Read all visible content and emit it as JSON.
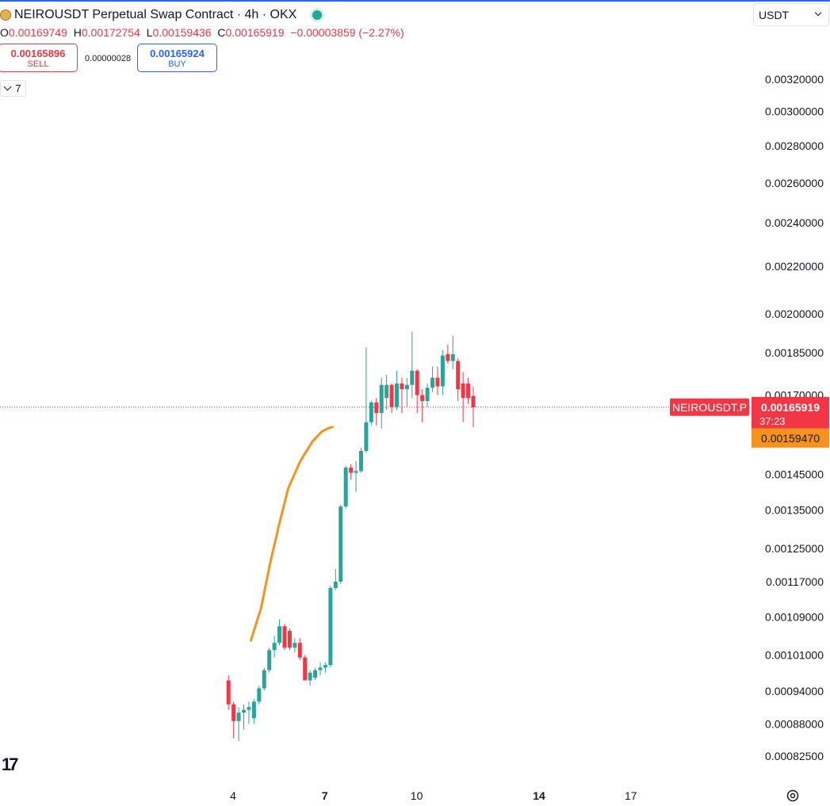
{
  "header": {
    "symbol_title": "NEIROUSDT Perpetual Swap Contract · 4h · OKX",
    "ohlc": {
      "o_label": "O",
      "o": "0.00169749",
      "h_label": "H",
      "h": "0.00172754",
      "l_label": "L",
      "l": "0.00159436",
      "c_label": "C",
      "c": "0.00165919",
      "change": "−0.00003859 (−2.27%)"
    },
    "sell_price": "0.00165896",
    "sell_label": "SELL",
    "spread": "0.00000028",
    "buy_price": "0.00165924",
    "buy_label": "BUY",
    "indicator_count": "7",
    "currency": "USDT",
    "logo": "17"
  },
  "colors": {
    "up": "#26a69a",
    "down": "#f23645",
    "ma": "#f7931a",
    "accent": "#2962ff"
  },
  "icons": [
    "coin-icon",
    "status-dot-icon",
    "chevron-down-icon",
    "settings-icon",
    "tradingview-logo"
  ],
  "chart_data": {
    "type": "candlestick",
    "y_axis_ticks": [
      "0.00320000",
      "0.00300000",
      "0.00280000",
      "0.00260000",
      "0.00240000",
      "0.00220000",
      "0.00200000",
      "0.00185000",
      "0.00170000",
      "0.00145000",
      "0.00135000",
      "0.00125000",
      "0.00117000",
      "0.00109000",
      "0.00101000",
      "0.00094000",
      "0.00088000",
      "0.00082500"
    ],
    "y_scale": "log",
    "x_axis_ticks": [
      {
        "label": "4",
        "bold": false
      },
      {
        "label": "7",
        "bold": true
      },
      {
        "label": "10",
        "bold": false
      },
      {
        "label": "14",
        "bold": true
      },
      {
        "label": "17",
        "bold": false
      }
    ],
    "first_candle_day": 3.85,
    "candle_period_days": 0.16667,
    "candles": [
      [
        0.00096,
        0.00097,
        0.000905,
        0.000915
      ],
      [
        0.000915,
        0.00092,
        0.000855,
        0.000885
      ],
      [
        0.000885,
        0.00091,
        0.00085,
        0.0009
      ],
      [
        0.0009,
        0.000915,
        0.00087,
        0.000905
      ],
      [
        0.000905,
        0.00092,
        0.00088,
        0.00091
      ],
      [
        0.00089,
        0.000925,
        0.00088,
        0.00092
      ],
      [
        0.00092,
        0.00095,
        0.000915,
        0.000945
      ],
      [
        0.000945,
        0.000985,
        0.00094,
        0.00098
      ],
      [
        0.00098,
        0.001025,
        0.000975,
        0.00102
      ],
      [
        0.00102,
        0.00105,
        0.001005,
        0.001035
      ],
      [
        0.001035,
        0.001085,
        0.00103,
        0.00107
      ],
      [
        0.00107,
        0.001075,
        0.00102,
        0.001025
      ],
      [
        0.00106,
        0.001065,
        0.00102,
        0.001025
      ],
      [
        0.001025,
        0.001045,
        0.001015,
        0.001035
      ],
      [
        0.001035,
        0.001045,
        0.001,
        0.001005
      ],
      [
        0.001005,
        0.00101,
        0.00096,
        0.00096
      ],
      [
        0.00096,
        0.00098,
        0.00095,
        0.000975
      ],
      [
        0.000965,
        0.000985,
        0.00096,
        0.00098
      ],
      [
        0.00098,
        0.000995,
        0.00097,
        0.000985
      ],
      [
        0.000985,
        0.000995,
        0.000975,
        0.00099
      ],
      [
        0.00099,
        0.00116,
        0.000985,
        0.001155
      ],
      [
        0.001155,
        0.0012,
        0.00115,
        0.00117
      ],
      [
        0.00117,
        0.001365,
        0.001165,
        0.00136
      ],
      [
        0.00136,
        0.001475,
        0.001355,
        0.00147
      ],
      [
        0.00147,
        0.00148,
        0.001435,
        0.001455
      ],
      [
        0.001455,
        0.00149,
        0.0014,
        0.00146
      ],
      [
        0.00146,
        0.00153,
        0.001455,
        0.00152
      ],
      [
        0.00152,
        0.00187,
        0.001515,
        0.00161
      ],
      [
        0.00161,
        0.00168,
        0.0016,
        0.001675
      ],
      [
        0.001675,
        0.00169,
        0.0016,
        0.00164
      ],
      [
        0.00164,
        0.00176,
        0.00159,
        0.001735
      ],
      [
        0.00169,
        0.00177,
        0.00165,
        0.001735
      ],
      [
        0.001735,
        0.00174,
        0.00164,
        0.00166
      ],
      [
        0.00166,
        0.001785,
        0.00165,
        0.00174
      ],
      [
        0.00174,
        0.00176,
        0.00164,
        0.00172
      ],
      [
        0.00172,
        0.00176,
        0.00166,
        0.001735
      ],
      [
        0.001735,
        0.00193,
        0.00169,
        0.001785
      ],
      [
        0.001785,
        0.00179,
        0.00164,
        0.0017
      ],
      [
        0.0017,
        0.00172,
        0.00161,
        0.00168
      ],
      [
        0.00168,
        0.00174,
        0.00166,
        0.001725
      ],
      [
        0.001725,
        0.0018,
        0.00171,
        0.00176
      ],
      [
        0.00176,
        0.0018,
        0.0017,
        0.00173
      ],
      [
        0.00173,
        0.00186,
        0.0017,
        0.00184
      ],
      [
        0.001845,
        0.00188,
        0.00181,
        0.00182
      ],
      [
        0.00182,
        0.001915,
        0.00179,
        0.001845
      ],
      [
        0.00182,
        0.00183,
        0.00168,
        0.00172
      ],
      [
        0.00174,
        0.00178,
        0.00161,
        0.00169
      ],
      [
        0.00174,
        0.00176,
        0.00167,
        0.00169
      ],
      [
        0.001697,
        0.001728,
        0.001594,
        0.001659
      ]
    ],
    "moving_average": [
      {
        "day": 4.5833,
        "price": 0.00104
      },
      {
        "day": 4.9167,
        "price": 0.00111
      },
      {
        "day": 5.2,
        "price": 0.00121
      },
      {
        "day": 5.5,
        "price": 0.00131
      },
      {
        "day": 5.8,
        "price": 0.00141
      },
      {
        "day": 6.2,
        "price": 0.00149
      },
      {
        "day": 6.6,
        "price": 0.00155
      },
      {
        "day": 6.9,
        "price": 0.00158
      },
      {
        "day": 7.1,
        "price": 0.00159
      },
      {
        "day": 7.25,
        "price": 0.001595
      }
    ],
    "last_price_line": 0.00165919,
    "price_label": {
      "symbol": "NEIROUSDT.P",
      "price": "0.00165919",
      "countdown": "37:23"
    },
    "ma_label": {
      "price": "0.00159470"
    }
  }
}
